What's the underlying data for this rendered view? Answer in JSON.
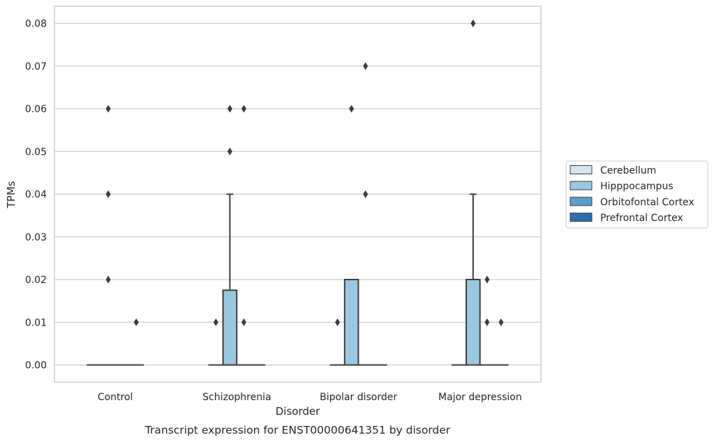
{
  "chart_data": {
    "type": "box",
    "title": "",
    "caption": "Transcript expression for ENST00000641351 by disorder",
    "xlabel": "Disorder",
    "ylabel": "TPMs",
    "ylim": [
      -0.004,
      0.084
    ],
    "yticks": [
      "0.00",
      "0.01",
      "0.02",
      "0.03",
      "0.04",
      "0.05",
      "0.06",
      "0.07",
      "0.08"
    ],
    "grid": "horizontal",
    "legend_position": "right",
    "categories": [
      "Control",
      "Schizophrenia",
      "Bipolar disorder",
      "Major depression"
    ],
    "series": [
      {
        "name": "Cerebellum",
        "color": "#d3e4f3"
      },
      {
        "name": "Hipppocampus",
        "color": "#9ac8e0"
      },
      {
        "name": "Orbitofontal Cortex",
        "color": "#5a9fcd"
      },
      {
        "name": "Prefrontal Cortex",
        "color": "#2c6fb0"
      }
    ],
    "boxes": [
      {
        "category": 0,
        "series": 0,
        "q1": 0,
        "median": 0,
        "q3": 0,
        "whisker_low": 0,
        "whisker_high": 0,
        "outliers": []
      },
      {
        "category": 0,
        "series": 1,
        "q1": 0,
        "median": 0,
        "q3": 0,
        "whisker_low": 0,
        "whisker_high": 0,
        "outliers": [
          0.02,
          0.04,
          0.06
        ]
      },
      {
        "category": 0,
        "series": 2,
        "q1": 0,
        "median": 0,
        "q3": 0,
        "whisker_low": 0,
        "whisker_high": 0,
        "outliers": []
      },
      {
        "category": 0,
        "series": 3,
        "q1": 0,
        "median": 0,
        "q3": 0,
        "whisker_low": 0,
        "whisker_high": 0,
        "outliers": [
          0.01
        ]
      },
      {
        "category": 1,
        "series": 0,
        "q1": 0,
        "median": 0,
        "q3": 0,
        "whisker_low": 0,
        "whisker_high": 0,
        "outliers": [
          0.01
        ]
      },
      {
        "category": 1,
        "series": 1,
        "q1": 0,
        "median": 0,
        "q3": 0.0175,
        "whisker_low": 0,
        "whisker_high": 0.04,
        "outliers": [
          0.05,
          0.06
        ]
      },
      {
        "category": 1,
        "series": 2,
        "q1": 0,
        "median": 0,
        "q3": 0,
        "whisker_low": 0,
        "whisker_high": 0,
        "outliers": [
          0.01,
          0.06
        ]
      },
      {
        "category": 1,
        "series": 3,
        "q1": 0,
        "median": 0,
        "q3": 0,
        "whisker_low": 0,
        "whisker_high": 0,
        "outliers": []
      },
      {
        "category": 2,
        "series": 0,
        "q1": 0,
        "median": 0,
        "q3": 0,
        "whisker_low": 0,
        "whisker_high": 0,
        "outliers": [
          0.01
        ]
      },
      {
        "category": 2,
        "series": 1,
        "q1": 0,
        "median": 0,
        "q3": 0.02,
        "whisker_low": 0,
        "whisker_high": 0.02,
        "outliers": [
          0.06
        ]
      },
      {
        "category": 2,
        "series": 2,
        "q1": 0,
        "median": 0,
        "q3": 0,
        "whisker_low": 0,
        "whisker_high": 0,
        "outliers": [
          0.04,
          0.07
        ]
      },
      {
        "category": 2,
        "series": 3,
        "q1": 0,
        "median": 0,
        "q3": 0,
        "whisker_low": 0,
        "whisker_high": 0,
        "outliers": []
      },
      {
        "category": 3,
        "series": 0,
        "q1": 0,
        "median": 0,
        "q3": 0,
        "whisker_low": 0,
        "whisker_high": 0,
        "outliers": []
      },
      {
        "category": 3,
        "series": 1,
        "q1": 0,
        "median": 0,
        "q3": 0.02,
        "whisker_low": 0,
        "whisker_high": 0.04,
        "outliers": [
          0.08
        ]
      },
      {
        "category": 3,
        "series": 2,
        "q1": 0,
        "median": 0,
        "q3": 0,
        "whisker_low": 0,
        "whisker_high": 0,
        "outliers": [
          0.01,
          0.02
        ]
      },
      {
        "category": 3,
        "series": 3,
        "q1": 0,
        "median": 0,
        "q3": 0,
        "whisker_low": 0,
        "whisker_high": 0,
        "outliers": [
          0.01
        ]
      }
    ]
  }
}
